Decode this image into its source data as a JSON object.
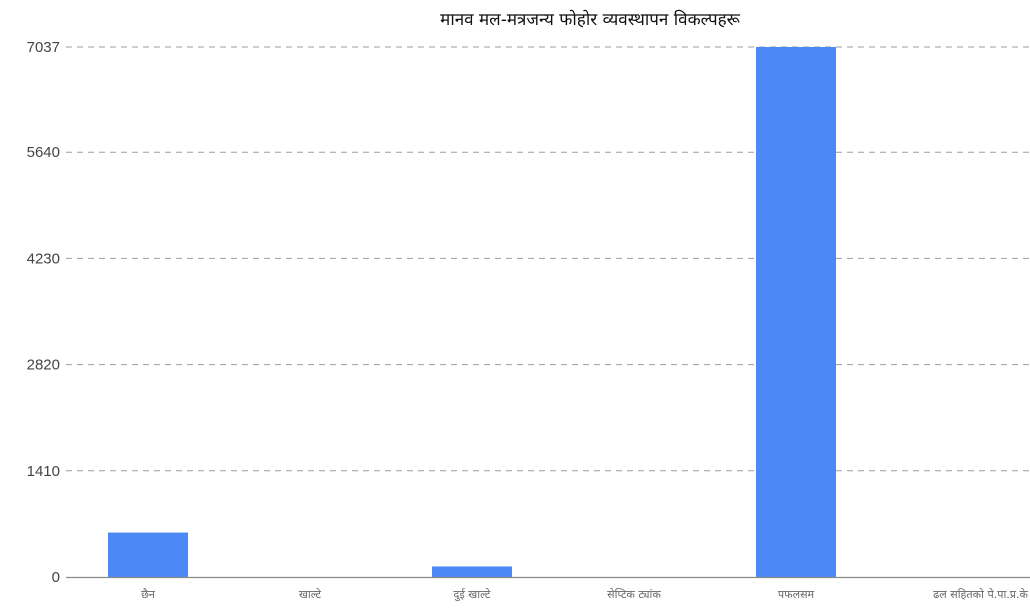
{
  "chart_data": {
    "type": "bar",
    "title": "मानव मल-मत्रजन्य फोहोर व्यवस्थापन विकल्पहरू",
    "categories": [
      "छैन",
      "खाल्टे",
      "दुई खाल्टे",
      "सेप्टिक ट्यांक",
      "पफलसम",
      "ढल सहितको पे.पा.प्र.के"
    ],
    "values": [
      590,
      0,
      140,
      0,
      7037,
      0
    ],
    "y_ticks": [
      0,
      1410,
      2820,
      4230,
      5640,
      7037
    ],
    "ylim": [
      0,
      7037
    ],
    "xlabel": "",
    "ylabel": "",
    "grid": true,
    "legend": "none",
    "bar_color": "#4d88f7"
  }
}
